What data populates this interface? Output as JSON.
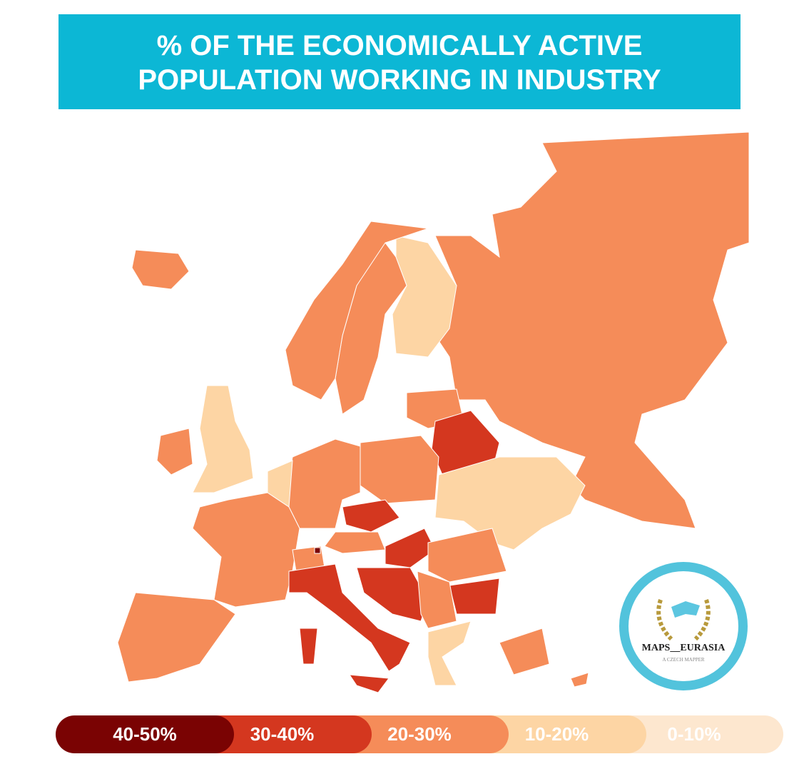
{
  "header": {
    "title_lines": [
      "% OF THE ECONOMICALLY ACTIVE",
      "POPULATION WORKING IN INDUSTRY"
    ]
  },
  "legend": [
    {
      "label": "40-50%",
      "color": "#7a0303"
    },
    {
      "label": "30-40%",
      "color": "#d4371f"
    },
    {
      "label": "20-30%",
      "color": "#f58c59"
    },
    {
      "label": "10-20%",
      "color": "#fdd5a4"
    },
    {
      "label": "0-10%",
      "color": "#fde7cf"
    }
  ],
  "logo": {
    "name": "MAPS__EURASIA",
    "tagline": "A CZECH MAPPER"
  }
}
